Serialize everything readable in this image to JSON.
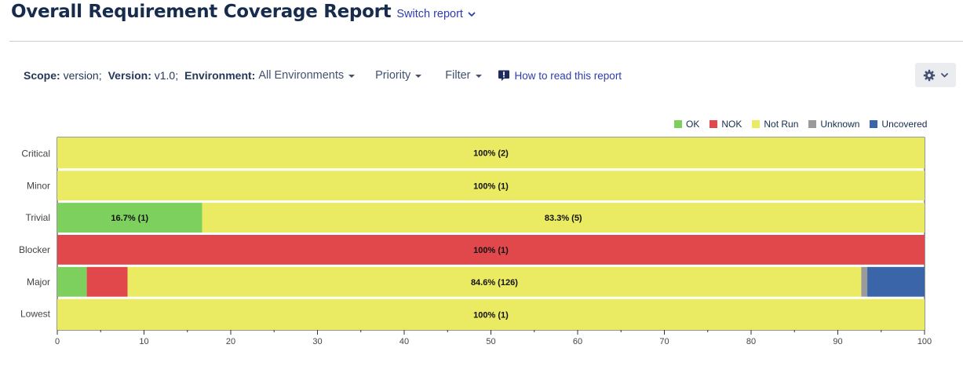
{
  "header": {
    "title": "Overall Requirement Coverage Report",
    "switch_label": "Switch report"
  },
  "toolbar": {
    "scope_label": "Scope:",
    "scope_value": "version;",
    "version_label": "Version:",
    "version_value": "v1.0;",
    "environment_label": "Environment:",
    "environment_value": "All Environments",
    "priority_label": "Priority",
    "filter_label": "Filter",
    "howto_label": "How to read this report"
  },
  "icons": {
    "switch": "chevron-down-icon",
    "howto": "info-bubble-icon",
    "settings": "gear-icon"
  },
  "chart_data": {
    "type": "bar",
    "orientation": "horizontal",
    "stacked": true,
    "categories": [
      "Critical",
      "Minor",
      "Trivial",
      "Blocker",
      "Major",
      "Lowest"
    ],
    "series": [
      {
        "name": "OK",
        "color": "#7dcf5e",
        "values": [
          0,
          0,
          16.7,
          0,
          3.4,
          0
        ],
        "labels": [
          "",
          "",
          "16.7% (1)",
          "",
          "",
          ""
        ]
      },
      {
        "name": "NOK",
        "color": "#e0484b",
        "values": [
          0,
          0,
          0,
          100,
          4.7,
          0
        ],
        "labels": [
          "",
          "",
          "",
          "100% (1)",
          "",
          ""
        ]
      },
      {
        "name": "Not Run",
        "color": "#ebeb63",
        "values": [
          100,
          100,
          83.3,
          0,
          84.6,
          100
        ],
        "labels": [
          "100% (2)",
          "100% (1)",
          "83.3% (5)",
          "",
          "84.6% (126)",
          "100% (1)"
        ]
      },
      {
        "name": "Unknown",
        "color": "#9a9a9a",
        "values": [
          0,
          0,
          0,
          0,
          0.7,
          0
        ],
        "labels": [
          "",
          "",
          "",
          "",
          "",
          ""
        ]
      },
      {
        "name": "Uncovered",
        "color": "#3a65a8",
        "values": [
          0,
          0,
          0,
          0,
          6.7,
          0
        ],
        "labels": [
          "",
          "",
          "",
          "",
          "",
          ""
        ]
      }
    ],
    "xlim": [
      0,
      100
    ],
    "xticks": [
      0,
      10,
      20,
      30,
      40,
      50,
      60,
      70,
      80,
      90,
      100
    ],
    "legend_position": "top-right",
    "grid": false
  }
}
